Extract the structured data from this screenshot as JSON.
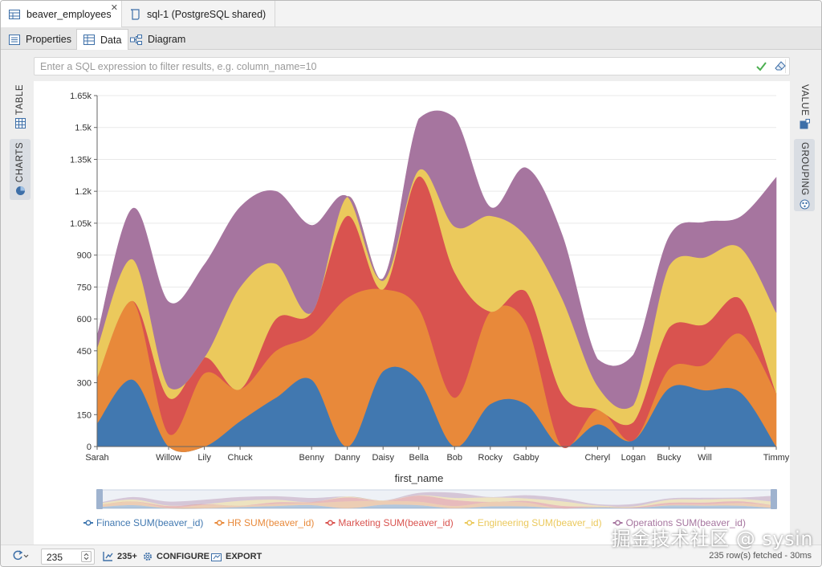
{
  "editor_tabs": [
    {
      "label": "beaver_employees",
      "icon": "table-icon"
    },
    {
      "label": "sql-1 (PostgreSQL shared)",
      "icon": "sql-script-icon"
    }
  ],
  "close_symbol": "✕",
  "sub_tabs": [
    {
      "label": "Properties",
      "icon": "properties-icon"
    },
    {
      "label": "Data",
      "icon": "grid-icon"
    },
    {
      "label": "Diagram",
      "icon": "diagram-icon"
    }
  ],
  "filter": {
    "placeholder": "Enter a SQL expression to filter results, e.g. column_name=10",
    "value": ""
  },
  "left_panel": {
    "table_label": "TABLE",
    "charts_label": "CHARTS"
  },
  "right_panel": {
    "value_label": "VALUE",
    "grouping_label": "GROUPING"
  },
  "colors": {
    "Finance": "#4178b0",
    "HR": "#e8893a",
    "Marketing": "#d9534f",
    "Engineering": "#ebc95c",
    "Operations": "#a6759f"
  },
  "chart_data": {
    "type": "area",
    "stacked": true,
    "xlabel": "first_name",
    "ylabel": "",
    "ylim": [
      0,
      1650
    ],
    "y_ticks": [
      "0",
      "150",
      "300",
      "450",
      "600",
      "750",
      "900",
      "1.05k",
      "1.2k",
      "1.35k",
      "1.5k",
      "1.65k"
    ],
    "grid": true,
    "legend_position": "bottom",
    "categories": [
      "Sarah",
      "",
      "Willow",
      "Lily",
      "Chuck",
      "",
      "Benny",
      "Danny",
      "Daisy",
      "Bella",
      "Bob",
      "Rocky",
      "Gabby",
      "",
      "Cheryl",
      "Logan",
      "Bucky",
      "Will",
      "",
      "Timmy"
    ],
    "series": [
      {
        "name": "Finance SUM(beaver_id)",
        "color": "#4178b0",
        "values": [
          110,
          315,
          0,
          0,
          120,
          230,
          315,
          0,
          355,
          310,
          0,
          200,
          200,
          0,
          105,
          30,
          275,
          265,
          255,
          0
        ]
      },
      {
        "name": "HR SUM(beaver_id)",
        "color": "#e8893a",
        "values": [
          215,
          370,
          60,
          345,
          150,
          220,
          210,
          700,
          385,
          340,
          230,
          435,
          380,
          0,
          70,
          0,
          90,
          120,
          275,
          250
        ]
      },
      {
        "name": "Marketing SUM(beaver_id)",
        "color": "#d9534f",
        "values": [
          0,
          0,
          170,
          75,
          0,
          150,
          105,
          385,
          0,
          620,
          590,
          0,
          150,
          250,
          0,
          85,
          195,
          190,
          165,
          0
        ]
      },
      {
        "name": "Engineering SUM(beaver_id)",
        "color": "#ebc95c",
        "values": [
          140,
          195,
          50,
          0,
          480,
          260,
          0,
          90,
          40,
          30,
          215,
          450,
          260,
          450,
          110,
          80,
          290,
          315,
          240,
          380
        ]
      },
      {
        "name": "Operations SUM(beaver_id)",
        "color": "#a6759f",
        "values": [
          55,
          240,
          400,
          435,
          375,
          340,
          410,
          0,
          10,
          240,
          510,
          40,
          320,
          300,
          125,
          235,
          135,
          165,
          145,
          635
        ]
      }
    ]
  },
  "bottom_bar": {
    "limit_value": "235",
    "fetched_count": "235+",
    "configure_label": "CONFIGURE",
    "export_label": "EXPORT",
    "status": "235 row(s) fetched - 30ms"
  },
  "watermark": "掘金技术社区 @ sysin"
}
